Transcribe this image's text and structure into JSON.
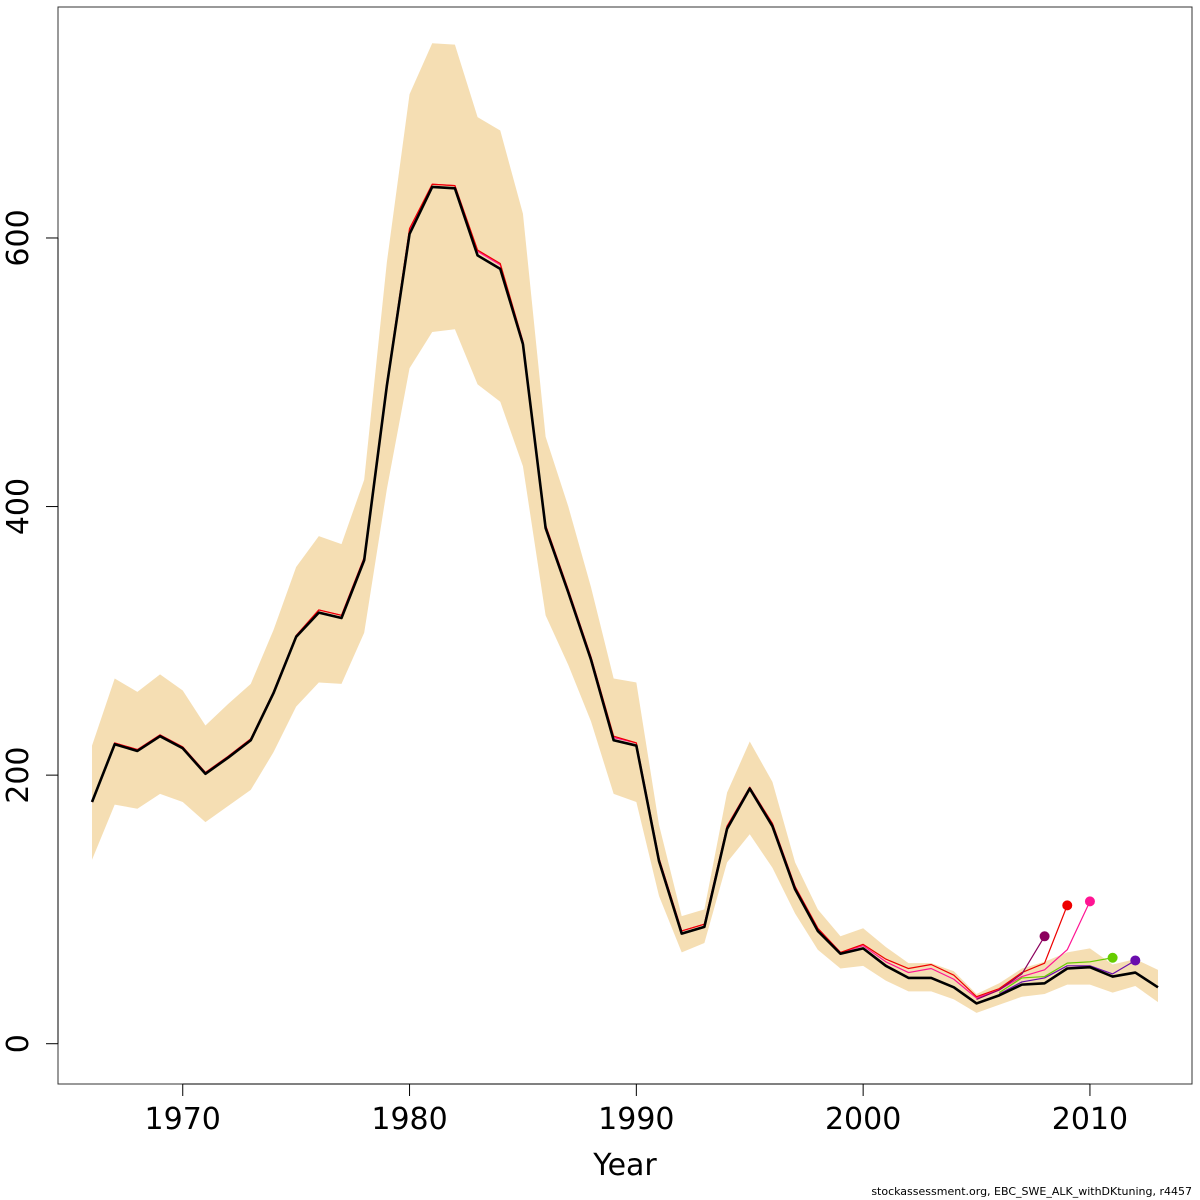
{
  "chart_data": {
    "type": "line",
    "title": "",
    "xlabel": "Year",
    "ylabel": "",
    "xlim": [
      1964.5,
      2014.5
    ],
    "ylim": [
      -30,
      772
    ],
    "x_ticks": [
      1970,
      1980,
      1990,
      2000,
      2010
    ],
    "y_ticks": [
      0,
      200,
      400,
      600
    ],
    "grid": false,
    "legend": "none",
    "colors": {
      "band": "#f5deb3",
      "base_line": "#000000",
      "peel_2012": "#6a0dad",
      "peel_2011": "#66cc00",
      "peel_2010": "#ff1493",
      "peel_2009": "#ee0000",
      "peel_2008": "#8b005d"
    },
    "confidence_band": {
      "x": [
        1966,
        1967,
        1968,
        1969,
        1970,
        1971,
        1972,
        1973,
        1974,
        1975,
        1976,
        1977,
        1978,
        1979,
        1980,
        1981,
        1982,
        1983,
        1984,
        1985,
        1986,
        1987,
        1988,
        1989,
        1990,
        1991,
        1992,
        1993,
        1994,
        1995,
        1996,
        1997,
        1998,
        1999,
        2000,
        2001,
        2002,
        2003,
        2004,
        2005,
        2006,
        2007,
        2008,
        2009,
        2010,
        2011,
        2012,
        2013
      ],
      "lower": [
        137,
        178,
        175,
        186,
        180,
        165,
        177,
        189,
        217,
        251,
        269,
        268,
        306,
        413,
        503,
        530,
        532,
        491,
        478,
        430,
        319,
        282,
        240,
        186,
        180,
        110,
        68,
        75,
        135,
        156,
        131,
        97,
        70,
        56,
        58,
        47,
        39,
        39,
        33,
        23,
        29,
        35,
        37,
        44,
        44,
        38,
        43,
        31
      ],
      "upper": [
        222,
        272,
        262,
        275,
        263,
        237,
        253,
        268,
        308,
        355,
        378,
        372,
        420,
        582,
        707,
        745,
        744,
        690,
        680,
        618,
        452,
        400,
        340,
        272,
        269,
        163,
        95,
        100,
        187,
        225,
        195,
        135,
        100,
        80,
        86,
        72,
        60,
        60,
        54,
        37,
        45,
        56,
        61,
        68,
        71,
        59,
        63,
        55
      ]
    },
    "series": [
      {
        "x": [
          1966,
          1967,
          1968,
          1969,
          1970,
          1971,
          1972,
          1973,
          1974,
          1975,
          1976,
          1977,
          1978,
          1979,
          1980,
          1981,
          1982,
          1983,
          1984,
          1985,
          1986,
          1987,
          1988,
          1989,
          1990,
          1991,
          1992,
          1993,
          1994,
          1995,
          1996,
          1997,
          1998,
          1999,
          2000,
          2001,
          2002,
          2003,
          2004,
          2005,
          2006,
          2007,
          2008,
          2009,
          2010,
          2011,
          2012,
          2013
        ],
        "values": [
          180,
          223,
          218,
          229,
          220,
          201,
          213,
          226,
          261,
          303,
          321,
          317,
          360,
          490,
          603,
          638,
          637,
          587,
          577,
          521,
          384,
          336,
          286,
          226,
          222,
          136,
          82,
          87,
          160,
          190,
          162,
          115,
          84,
          67,
          71,
          58,
          49,
          49,
          42,
          30,
          36,
          44,
          45,
          56,
          57,
          50,
          53,
          42
        ],
        "style": "base"
      },
      {
        "x": [
          2006,
          2007,
          2008,
          2009,
          2010,
          2011,
          2012
        ],
        "values": [
          37,
          46,
          49,
          58,
          58,
          52,
          62
        ],
        "style": "peel",
        "color_key": "peel_2012"
      },
      {
        "x": [
          2006,
          2007,
          2008,
          2009,
          2010,
          2011
        ],
        "values": [
          38,
          49,
          50,
          60,
          61,
          64
        ],
        "style": "peel",
        "color_key": "peel_2011"
      },
      {
        "x": [
          1966,
          1967,
          1968,
          1969,
          1970,
          1971,
          1972,
          1973,
          1974,
          1975,
          1976,
          1977,
          1978,
          1979,
          1980,
          1981,
          1982,
          1983,
          1984,
          1985,
          1986,
          1987,
          1988,
          1989,
          1990,
          1991,
          1992,
          1993,
          1994,
          1995,
          1996,
          1997,
          1998,
          1999,
          2000,
          2001,
          2002,
          2003,
          2004,
          2005,
          2006,
          2007,
          2008,
          2009,
          2010
        ],
        "values": [
          180,
          224,
          219,
          230,
          221,
          202,
          214,
          227,
          262,
          304,
          323,
          319,
          362,
          492,
          606,
          640,
          639,
          590,
          580,
          523,
          386,
          338,
          288,
          228,
          224,
          138,
          84,
          89,
          162,
          191,
          164,
          117,
          86,
          68,
          73,
          61,
          53,
          56,
          48,
          34,
          40,
          50,
          55,
          70,
          106
        ],
        "style": "peel",
        "color_key": "peel_2010"
      },
      {
        "x": [
          1966,
          1967,
          1968,
          1969,
          1970,
          1971,
          1972,
          1973,
          1974,
          1975,
          1976,
          1977,
          1978,
          1979,
          1980,
          1981,
          1982,
          1983,
          1984,
          1985,
          1986,
          1987,
          1988,
          1989,
          1990,
          1991,
          1992,
          1993,
          1994,
          1995,
          1996,
          1997,
          1998,
          1999,
          2000,
          2001,
          2002,
          2003,
          2004,
          2005,
          2006,
          2007,
          2008,
          2009
        ],
        "values": [
          180,
          224,
          219,
          230,
          221,
          202,
          214,
          227,
          262,
          304,
          323,
          319,
          362,
          492,
          607,
          640,
          639,
          591,
          581,
          523,
          386,
          338,
          288,
          229,
          224,
          138,
          84,
          89,
          162,
          191,
          164,
          117,
          86,
          68,
          74,
          63,
          56,
          59,
          51,
          35,
          41,
          53,
          60,
          103
        ],
        "style": "peel",
        "color_key": "peel_2009"
      },
      {
        "x": [
          2005,
          2006,
          2007,
          2008
        ],
        "values": [
          33,
          40,
          52,
          80
        ],
        "style": "peel",
        "color_key": "peel_2008"
      }
    ]
  },
  "footnote": "stockassessment.org, EBC_SWE_ALK_withDKtuning, r4457"
}
